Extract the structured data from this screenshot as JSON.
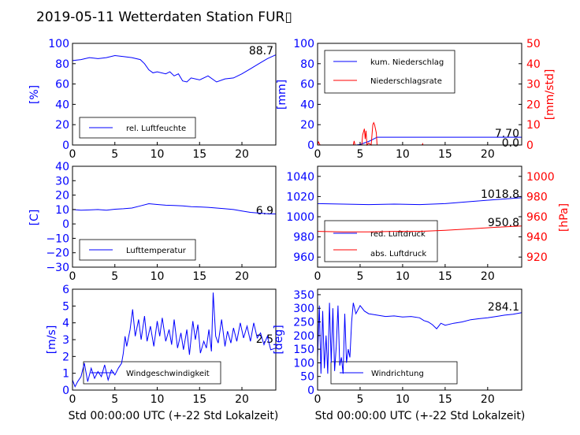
{
  "title": "2019-05-11 Wetterdaten Station FUR▯",
  "colors": {
    "primary": "#0000ff",
    "secondary": "#ff0000",
    "axis": "#000000"
  },
  "chart_data": [
    {
      "id": "humidity",
      "type": "line",
      "xlim": [
        0,
        24
      ],
      "ylim": [
        0,
        100
      ],
      "xticks": [
        0,
        5,
        10,
        15,
        20
      ],
      "yticks": [
        0,
        20,
        40,
        60,
        80,
        100
      ],
      "xlabel": "",
      "ylabel": "[%]",
      "legend": [
        {
          "label": "rel. Luftfeuchte",
          "color": "#0000ff"
        }
      ],
      "legend_position": "lower-left",
      "value_label": "88.7",
      "series": [
        {
          "name": "rel. Luftfeuchte",
          "axis": "left",
          "color": "#0000ff",
          "points": [
            [
              0,
              83
            ],
            [
              1,
              84
            ],
            [
              2,
              86
            ],
            [
              3,
              85
            ],
            [
              4,
              86
            ],
            [
              5,
              88
            ],
            [
              6,
              87
            ],
            [
              7,
              86
            ],
            [
              8,
              84
            ],
            [
              8.5,
              80
            ],
            [
              9,
              74
            ],
            [
              9.5,
              71
            ],
            [
              10,
              72
            ],
            [
              11,
              70
            ],
            [
              11.5,
              72
            ],
            [
              12,
              68
            ],
            [
              12.5,
              70
            ],
            [
              13,
              63
            ],
            [
              13.5,
              62
            ],
            [
              14,
              66
            ],
            [
              15,
              64
            ],
            [
              16,
              68
            ],
            [
              17,
              62
            ],
            [
              18,
              65
            ],
            [
              19,
              66
            ],
            [
              20,
              70
            ],
            [
              21,
              75
            ],
            [
              22,
              80
            ],
            [
              23,
              85
            ],
            [
              24,
              88.7
            ]
          ]
        }
      ]
    },
    {
      "id": "precipitation",
      "type": "line",
      "xlim": [
        0,
        24
      ],
      "ylim": [
        0,
        100
      ],
      "ylim_right": [
        0,
        50
      ],
      "xticks": [
        0,
        5,
        10,
        15,
        20
      ],
      "yticks": [
        0,
        20,
        40,
        60,
        80,
        100
      ],
      "yticks_right": [
        0,
        10,
        20,
        30,
        40,
        50
      ],
      "xlabel": "",
      "ylabel": "[mm]",
      "ylabel_right": "[mm/std]",
      "legend": [
        {
          "label": "kum. Niederschlag",
          "color": "#0000ff"
        },
        {
          "label": "Niederschlagsrate",
          "color": "#ff0000"
        }
      ],
      "legend_position": "upper-left",
      "value_labels": [
        "7.70",
        "0.0"
      ],
      "series": [
        {
          "name": "kum. Niederschlag",
          "axis": "left",
          "color": "#0000ff",
          "points": [
            [
              0,
              0
            ],
            [
              4.5,
              0
            ],
            [
              5,
              0.5
            ],
            [
              5.5,
              2
            ],
            [
              6,
              3.5
            ],
            [
              6.5,
              5.5
            ],
            [
              7,
              7.7
            ],
            [
              24,
              7.7
            ]
          ]
        },
        {
          "name": "Niederschlagsrate",
          "axis": "right",
          "color": "#ff0000",
          "points": [
            [
              0,
              0
            ],
            [
              0.1,
              1.5
            ],
            [
              0.3,
              0
            ],
            [
              4.2,
              0
            ],
            [
              4.3,
              2
            ],
            [
              4.4,
              0
            ],
            [
              5.2,
              0
            ],
            [
              5.3,
              5
            ],
            [
              5.5,
              8
            ],
            [
              5.6,
              3
            ],
            [
              5.7,
              7
            ],
            [
              5.8,
              0
            ],
            [
              6,
              1
            ],
            [
              6.3,
              0
            ],
            [
              6.5,
              10
            ],
            [
              6.6,
              11
            ],
            [
              6.7,
              10
            ],
            [
              6.9,
              6
            ],
            [
              7,
              0
            ],
            [
              12.3,
              0
            ],
            [
              12.35,
              0.6
            ],
            [
              12.4,
              0
            ],
            [
              24,
              0
            ]
          ]
        }
      ]
    },
    {
      "id": "temperature",
      "type": "line",
      "xlim": [
        0,
        24
      ],
      "ylim": [
        -30,
        40
      ],
      "xticks": [
        0,
        5,
        10,
        15,
        20
      ],
      "yticks": [
        -30,
        -20,
        -10,
        0,
        10,
        20,
        30,
        40
      ],
      "xlabel": "",
      "ylabel": "[C]",
      "legend": [
        {
          "label": "Lufttemperatur",
          "color": "#0000ff"
        }
      ],
      "legend_position": "lower-left",
      "value_label": "6.9",
      "series": [
        {
          "name": "Lufttemperatur",
          "axis": "left",
          "color": "#0000ff",
          "points": [
            [
              0,
              10
            ],
            [
              1,
              9.5
            ],
            [
              2,
              9.7
            ],
            [
              3,
              10
            ],
            [
              4,
              9.5
            ],
            [
              5,
              10.2
            ],
            [
              6,
              10.5
            ],
            [
              7,
              11
            ],
            [
              8,
              12.5
            ],
            [
              9,
              14
            ],
            [
              10,
              13.5
            ],
            [
              11,
              13
            ],
            [
              12,
              12.8
            ],
            [
              13,
              12.5
            ],
            [
              14,
              12
            ],
            [
              15,
              11.8
            ],
            [
              16,
              11.5
            ],
            [
              17,
              11
            ],
            [
              18,
              10.5
            ],
            [
              19,
              10
            ],
            [
              20,
              9
            ],
            [
              21,
              8
            ],
            [
              22,
              7.5
            ],
            [
              23,
              7
            ],
            [
              24,
              6.9
            ]
          ]
        }
      ]
    },
    {
      "id": "pressure",
      "type": "line",
      "xlim": [
        0,
        24
      ],
      "ylim": [
        950,
        1050
      ],
      "ylim_right": [
        910,
        1010
      ],
      "xticks": [
        0,
        5,
        10,
        15,
        20
      ],
      "yticks": [
        960,
        980,
        1000,
        1020,
        1040
      ],
      "yticks_right": [
        920,
        940,
        960,
        980,
        1000
      ],
      "xlabel": "",
      "ylabel": "",
      "ylabel_right": "[hPa]",
      "legend": [
        {
          "label": "red. Luftdruck",
          "color": "#0000ff"
        },
        {
          "label": "abs. Luftdruck",
          "color": "#ff0000"
        }
      ],
      "legend_position": "lower-left",
      "value_labels": [
        "1018.8",
        "950.8"
      ],
      "series": [
        {
          "name": "red. Luftdruck",
          "axis": "left",
          "color": "#0000ff",
          "points": [
            [
              0,
              1013
            ],
            [
              3,
              1012.5
            ],
            [
              6,
              1012
            ],
            [
              9,
              1012.5
            ],
            [
              12,
              1012
            ],
            [
              15,
              1013
            ],
            [
              18,
              1015
            ],
            [
              21,
              1017
            ],
            [
              24,
              1018.8
            ]
          ]
        },
        {
          "name": "abs. Luftdruck",
          "axis": "right",
          "color": "#ff0000",
          "points": [
            [
              0,
              945.5
            ],
            [
              3,
              945
            ],
            [
              6,
              945
            ],
            [
              9,
              945.5
            ],
            [
              12,
              945.5
            ],
            [
              15,
              946.5
            ],
            [
              18,
              948
            ],
            [
              21,
              949.5
            ],
            [
              24,
              950.8
            ]
          ]
        }
      ]
    },
    {
      "id": "windspeed",
      "type": "line",
      "xlim": [
        0,
        24
      ],
      "ylim": [
        0,
        6
      ],
      "xticks": [
        0,
        5,
        10,
        15,
        20
      ],
      "yticks": [
        0,
        1,
        2,
        3,
        4,
        5,
        6
      ],
      "xlabel": "Std 00:00:00 UTC (+-22 Std Lokalzeit)",
      "ylabel": "[m/s]",
      "legend": [
        {
          "label": "Windgeschwindigkeit",
          "color": "#0000ff"
        }
      ],
      "legend_position": "lower-center",
      "value_label": "2.5",
      "series": [
        {
          "name": "Windgeschwindigkeit",
          "axis": "left",
          "color": "#0000ff",
          "points": [
            [
              0,
              0.6
            ],
            [
              0.3,
              0.2
            ],
            [
              0.6,
              0.5
            ],
            [
              1,
              0.8
            ],
            [
              1.4,
              1.6
            ],
            [
              1.8,
              0.5
            ],
            [
              2.2,
              1.3
            ],
            [
              2.6,
              0.7
            ],
            [
              3,
              1.1
            ],
            [
              3.4,
              0.8
            ],
            [
              3.8,
              1.5
            ],
            [
              4.2,
              0.6
            ],
            [
              4.6,
              1.2
            ],
            [
              5,
              0.9
            ],
            [
              5.4,
              1.3
            ],
            [
              5.8,
              1.6
            ],
            [
              6,
              2.2
            ],
            [
              6.2,
              3.2
            ],
            [
              6.4,
              2.6
            ],
            [
              6.8,
              3.6
            ],
            [
              7.1,
              4.8
            ],
            [
              7.4,
              3.2
            ],
            [
              7.8,
              4.2
            ],
            [
              8.1,
              3.0
            ],
            [
              8.5,
              4.4
            ],
            [
              8.8,
              2.9
            ],
            [
              9.2,
              3.8
            ],
            [
              9.6,
              2.6
            ],
            [
              10,
              4.1
            ],
            [
              10.3,
              3.2
            ],
            [
              10.6,
              4.3
            ],
            [
              11,
              2.9
            ],
            [
              11.4,
              3.6
            ],
            [
              11.7,
              2.7
            ],
            [
              12,
              4.2
            ],
            [
              12.4,
              2.5
            ],
            [
              12.8,
              3.4
            ],
            [
              13.1,
              2.4
            ],
            [
              13.5,
              3.6
            ],
            [
              13.8,
              2.1
            ],
            [
              14.2,
              4.1
            ],
            [
              14.5,
              3.0
            ],
            [
              14.8,
              3.9
            ],
            [
              15.1,
              2.2
            ],
            [
              15.5,
              2.9
            ],
            [
              15.8,
              2.5
            ],
            [
              16.1,
              3.6
            ],
            [
              16.4,
              2.3
            ],
            [
              16.6,
              5.8
            ],
            [
              16.9,
              3.2
            ],
            [
              17.2,
              2.8
            ],
            [
              17.6,
              4.2
            ],
            [
              18,
              2.6
            ],
            [
              18.3,
              3.5
            ],
            [
              18.7,
              2.8
            ],
            [
              19,
              3.7
            ],
            [
              19.4,
              2.9
            ],
            [
              19.8,
              4.0
            ],
            [
              20.2,
              3.1
            ],
            [
              20.6,
              3.8
            ],
            [
              21,
              2.9
            ],
            [
              21.4,
              4.0
            ],
            [
              21.8,
              3.1
            ],
            [
              22.2,
              3.4
            ],
            [
              22.6,
              2.7
            ],
            [
              23,
              3.2
            ],
            [
              23.4,
              2.4
            ],
            [
              24,
              2.5
            ]
          ]
        }
      ]
    },
    {
      "id": "winddirection",
      "type": "line",
      "xlim": [
        0,
        24
      ],
      "ylim": [
        0,
        370
      ],
      "xticks": [
        0,
        5,
        10,
        15,
        20
      ],
      "yticks": [
        0,
        50,
        100,
        150,
        200,
        250,
        300,
        350
      ],
      "xlabel": "Std 00:00:00 UTC (+-22 Std Lokalzeit)",
      "ylabel": "[deg]",
      "legend": [
        {
          "label": "Windrichtung",
          "color": "#0000ff"
        }
      ],
      "legend_position": "lower-center",
      "value_label": "284.1",
      "series": [
        {
          "name": "Windrichtung",
          "axis": "left",
          "color": "#0000ff",
          "points": [
            [
              0,
              120
            ],
            [
              0.2,
              310
            ],
            [
              0.4,
              60
            ],
            [
              0.6,
              290
            ],
            [
              0.8,
              80
            ],
            [
              1,
              200
            ],
            [
              1.2,
              60
            ],
            [
              1.4,
              320
            ],
            [
              1.6,
              100
            ],
            [
              1.8,
              300
            ],
            [
              2,
              70
            ],
            [
              2.2,
              160
            ],
            [
              2.4,
              310
            ],
            [
              2.6,
              90
            ],
            [
              2.8,
              120
            ],
            [
              3,
              60
            ],
            [
              3.2,
              280
            ],
            [
              3.4,
              100
            ],
            [
              3.6,
              150
            ],
            [
              3.8,
              120
            ],
            [
              4,
              250
            ],
            [
              4.2,
              320
            ],
            [
              4.5,
              280
            ],
            [
              5,
              310
            ],
            [
              5.5,
              290
            ],
            [
              6,
              280
            ],
            [
              7,
              275
            ],
            [
              8,
              270
            ],
            [
              9,
              272
            ],
            [
              10,
              268
            ],
            [
              11,
              270
            ],
            [
              12,
              265
            ],
            [
              12.5,
              255
            ],
            [
              13,
              250
            ],
            [
              13.5,
              240
            ],
            [
              14,
              225
            ],
            [
              14.5,
              245
            ],
            [
              15,
              238
            ],
            [
              16,
              245
            ],
            [
              17,
              250
            ],
            [
              18,
              258
            ],
            [
              19,
              262
            ],
            [
              20,
              265
            ],
            [
              21,
              270
            ],
            [
              22,
              275
            ],
            [
              23,
              278
            ],
            [
              24,
              284
            ]
          ]
        }
      ]
    }
  ]
}
